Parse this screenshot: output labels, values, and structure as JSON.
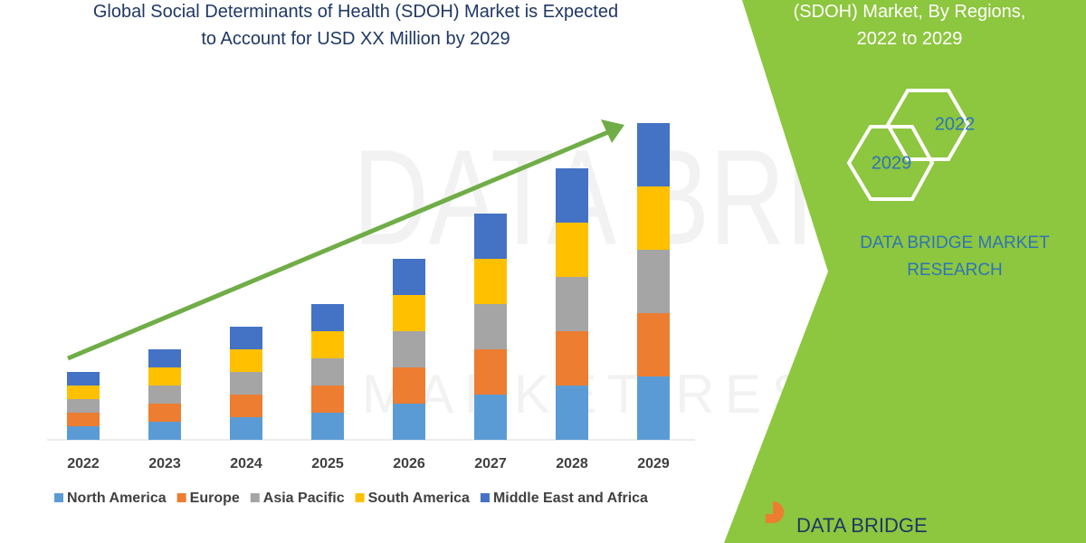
{
  "chart_data": {
    "type": "bar",
    "stacked": true,
    "title": "Global Social Determinants of Health (SDOH) Market is Expected to Account for USD XX Million by 2029",
    "categories": [
      "2022",
      "2023",
      "2024",
      "2025",
      "2026",
      "2027",
      "2028",
      "2029"
    ],
    "series": [
      {
        "name": "North America",
        "color": "#5b9bd5",
        "values": [
          15,
          20,
          25,
          30,
          40,
          50,
          60,
          70
        ]
      },
      {
        "name": "Europe",
        "color": "#ed7d31",
        "values": [
          15,
          20,
          25,
          30,
          40,
          50,
          60,
          70
        ]
      },
      {
        "name": "Asia Pacific",
        "color": "#a5a5a5",
        "values": [
          15,
          20,
          25,
          30,
          40,
          50,
          60,
          70
        ]
      },
      {
        "name": "South America",
        "color": "#ffc000",
        "values": [
          15,
          20,
          25,
          30,
          40,
          50,
          60,
          70
        ]
      },
      {
        "name": "Middle East and Africa",
        "color": "#4472c4",
        "values": [
          15,
          20,
          25,
          30,
          40,
          50,
          60,
          70
        ]
      }
    ],
    "trend_color": "#70ad47"
  },
  "panel": {
    "heading": "(SDOH) Market, By Regions, 2022 to 2029",
    "hex_labels": [
      "2022",
      "2029"
    ],
    "brand": "DATA BRIDGE MARKET RESEARCH",
    "logo": "DATA BRIDGE",
    "color": "#8dc63f"
  },
  "watermark": [
    "DATA BRIDGE",
    "MARKET RESEARCH"
  ]
}
